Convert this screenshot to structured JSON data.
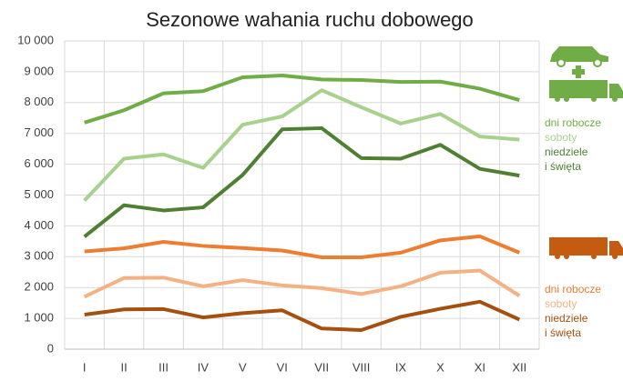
{
  "chart_data": {
    "type": "line",
    "title": "Sezonowe wahania ruchu dobowego",
    "categories": [
      "I",
      "II",
      "III",
      "IV",
      "V",
      "VI",
      "VII",
      "VIII",
      "IX",
      "X",
      "XI",
      "XII"
    ],
    "series": [
      {
        "name": "dni robocze",
        "color": "#70ad47",
        "values": [
          7350,
          7750,
          8300,
          8370,
          8820,
          8880,
          8750,
          8730,
          8670,
          8680,
          8450,
          8080
        ]
      },
      {
        "name": "soboty",
        "color": "#a9d18e",
        "values": [
          4820,
          6180,
          6320,
          5880,
          7280,
          7550,
          8400,
          7850,
          7320,
          7630,
          6900,
          6800
        ]
      },
      {
        "name": "niedziele i święta",
        "color": "#4e7f33",
        "values": [
          3650,
          4670,
          4500,
          4600,
          5650,
          7130,
          7170,
          6200,
          6180,
          6630,
          5850,
          5630
        ]
      },
      {
        "name": "dni robocze",
        "color": "#ed7d31",
        "values": [
          3170,
          3270,
          3480,
          3350,
          3280,
          3200,
          2980,
          2980,
          3130,
          3530,
          3660,
          3130
        ]
      },
      {
        "name": "soboty",
        "color": "#f4b183",
        "values": [
          1700,
          2310,
          2320,
          2040,
          2240,
          2070,
          1980,
          1790,
          2040,
          2480,
          2550,
          1730
        ]
      },
      {
        "name": "niedziele i święta",
        "color": "#a5500f",
        "values": [
          1120,
          1290,
          1300,
          1030,
          1170,
          1260,
          670,
          620,
          1050,
          1310,
          1540,
          960
        ]
      }
    ],
    "ylim": [
      0,
      10000
    ],
    "yticks": [
      0,
      {
        "value": 1000,
        "label": "1 000"
      },
      {
        "value": 2000,
        "label": "2 000"
      },
      {
        "value": 3000,
        "label": "3 000"
      },
      {
        "value": 4000,
        "label": "4 000"
      },
      {
        "value": 5000,
        "label": "5 000"
      },
      {
        "value": 6000,
        "label": "6 000"
      },
      {
        "value": 7000,
        "label": "7 000"
      },
      {
        "value": 8000,
        "label": "8 000"
      },
      {
        "value": 9000,
        "label": "9 000"
      },
      {
        "value": 10000,
        "label": "10 000"
      }
    ],
    "grid": true
  }
}
